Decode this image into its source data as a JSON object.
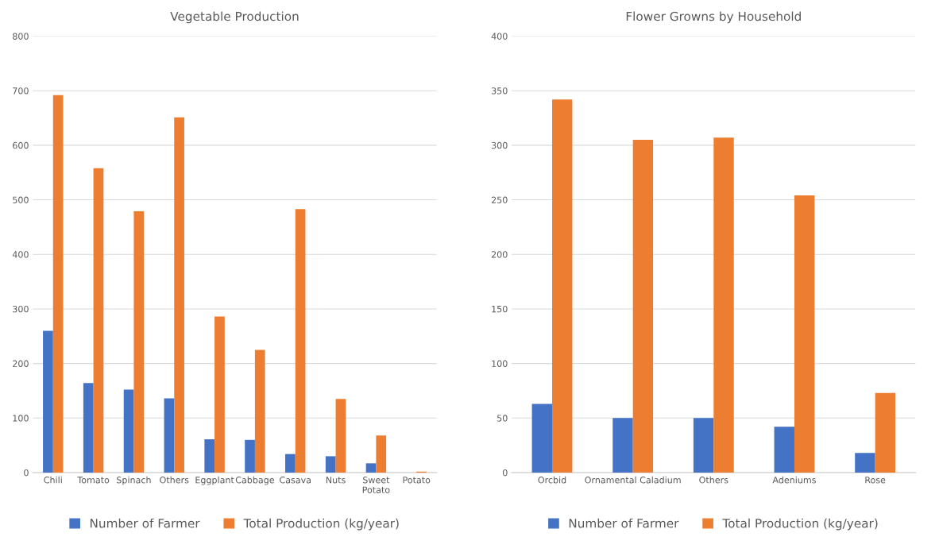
{
  "chart_data": [
    {
      "type": "bar",
      "title": "Vegetable Production",
      "categories": [
        "Chili",
        "Tomato",
        "Spinach",
        "Others",
        "Eggplant",
        "Cabbage",
        "Casava",
        "Nuts",
        "Sweet\nPotato",
        "Potato"
      ],
      "series": [
        {
          "name": "Number of Farmer",
          "color": "#4472c4",
          "values": [
            260,
            164,
            152,
            136,
            61,
            60,
            34,
            30,
            17,
            0
          ]
        },
        {
          "name": "Total Production (kg/year)",
          "color": "#ed7d31",
          "values": [
            692,
            558,
            479,
            651,
            286,
            225,
            483,
            135,
            68,
            2
          ]
        }
      ],
      "ylim": [
        0,
        800
      ],
      "yticks": [
        0,
        100,
        200,
        300,
        400,
        500,
        600,
        700,
        800
      ],
      "grid": "y",
      "legend": "bottom"
    },
    {
      "type": "bar",
      "title": "Flower Growns by Household",
      "categories": [
        "Orcbid",
        "Ornamental Caladium",
        "Others",
        "Adeniums",
        "Rose"
      ],
      "series": [
        {
          "name": "Number of Farmer",
          "color": "#4472c4",
          "values": [
            63,
            50,
            50,
            42,
            18
          ]
        },
        {
          "name": "Total Production (kg/year)",
          "color": "#ed7d31",
          "values": [
            342,
            305,
            307,
            254,
            73
          ]
        }
      ],
      "ylim": [
        0,
        400
      ],
      "yticks": [
        0,
        50,
        100,
        150,
        200,
        250,
        300,
        350,
        400
      ],
      "grid": "y",
      "legend": "bottom"
    }
  ]
}
